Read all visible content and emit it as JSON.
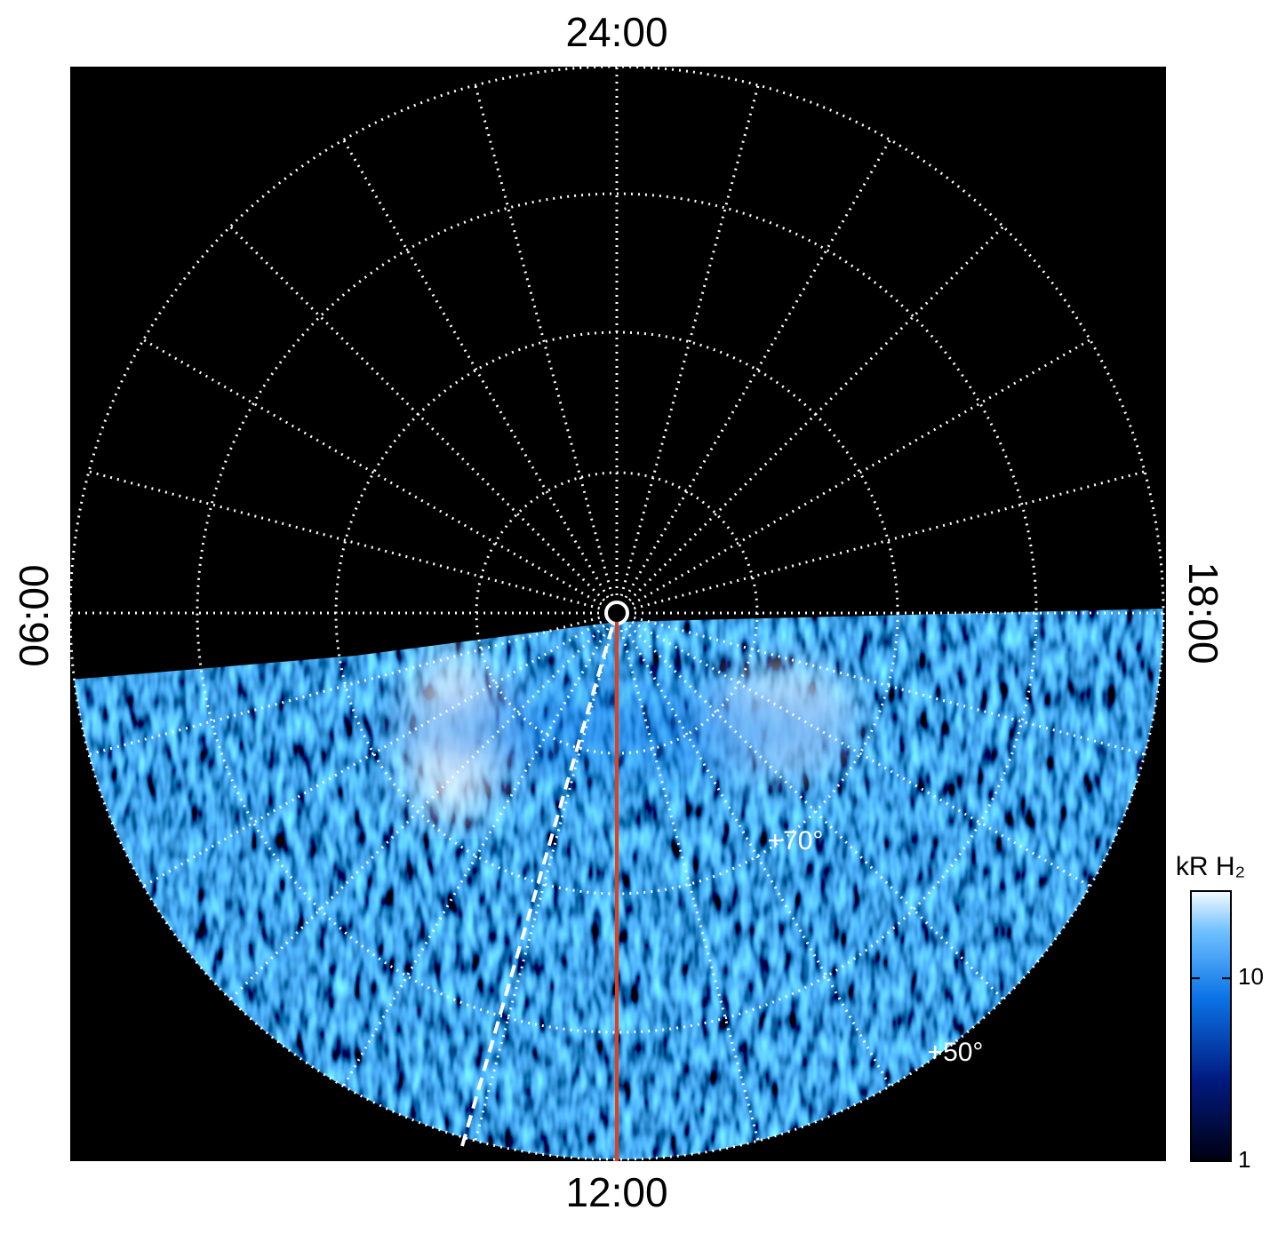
{
  "chart_data": {
    "type": "polar-map",
    "local_time_labels": {
      "top": "24:00",
      "bottom": "12:00",
      "left": "06:00",
      "right": "18:00"
    },
    "latitude_labels": [
      "+70°",
      "+50°"
    ],
    "colorbar": {
      "label": "kR H₂",
      "lim": [
        1,
        30
      ],
      "ticks": [
        1,
        10
      ],
      "log": true
    }
  }
}
